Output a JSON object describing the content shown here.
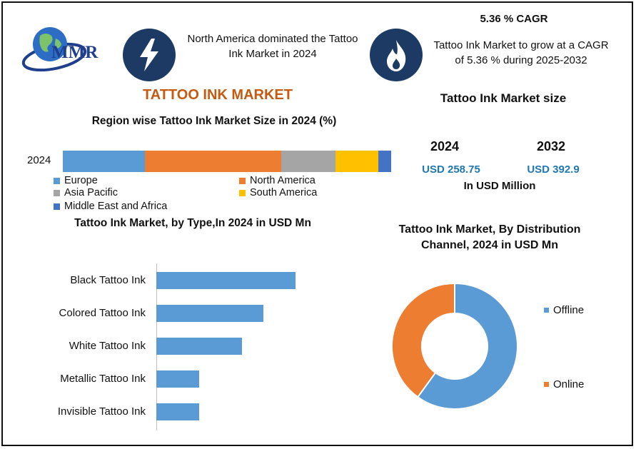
{
  "header": {
    "logo_text": "MMR",
    "headline_left": "North America dominated the Tattoo Ink Market in 2024",
    "cagr_title": "5.36 % CAGR",
    "cagr_text": "Tattoo Ink Market to grow at a CAGR of 5.36 % during 2025-2032",
    "icons": [
      "lightning-icon",
      "flame-icon",
      "globe-logo-icon"
    ]
  },
  "main_title": "TATTOO INK MARKET",
  "market_size": {
    "title": "Tattoo Ink Market size",
    "years": [
      "2024",
      "2032"
    ],
    "values": [
      "USD 258.75",
      "USD 392.9"
    ],
    "unit": "In USD Million"
  },
  "colors": {
    "europe": "#5b9bd5",
    "north_america": "#ed7d31",
    "asia_pacific": "#a5a5a5",
    "south_america": "#ffc000",
    "middle_east_africa": "#4472c4",
    "bar": "#5b9bd5",
    "offline": "#5b9bd5",
    "online": "#ed7d31",
    "title_accent": "#c55a11",
    "value_accent": "#1f78b4",
    "icon_bg": "#1c3a63"
  },
  "chart_data": [
    {
      "type": "bar",
      "orientation": "horizontal-stacked",
      "title": "Region wise Tattoo Ink Market Size in 2024 (%)",
      "categories": [
        "2024"
      ],
      "series": [
        {
          "name": "Europe",
          "values": [
            25
          ]
        },
        {
          "name": "North America",
          "values": [
            41.5
          ]
        },
        {
          "name": "Asia Pacific",
          "values": [
            16.5
          ]
        },
        {
          "name": "South America",
          "values": [
            13
          ]
        },
        {
          "name": "Middle East and Africa",
          "values": [
            4
          ]
        }
      ],
      "xlim": [
        0,
        100
      ],
      "legend": "bottom"
    },
    {
      "type": "bar",
      "orientation": "horizontal",
      "title": "Tattoo Ink Market, by  Type,In 2024 in USD Mn",
      "categories": [
        "Black Tattoo Ink",
        "Colored Tattoo Ink",
        "White Tattoo Ink",
        "Metallic Tattoo Ink",
        "Invisible Tattoo Ink"
      ],
      "values": [
        65,
        50,
        40,
        20,
        20
      ],
      "xlim": [
        0,
        100
      ],
      "grid": false
    },
    {
      "type": "pie",
      "variant": "donut",
      "title": "Tattoo Ink Market, By Distribution Channel, 2024 in USD Mn",
      "categories": [
        "Offline",
        "Online"
      ],
      "values": [
        60,
        40
      ],
      "legend": "right"
    }
  ]
}
